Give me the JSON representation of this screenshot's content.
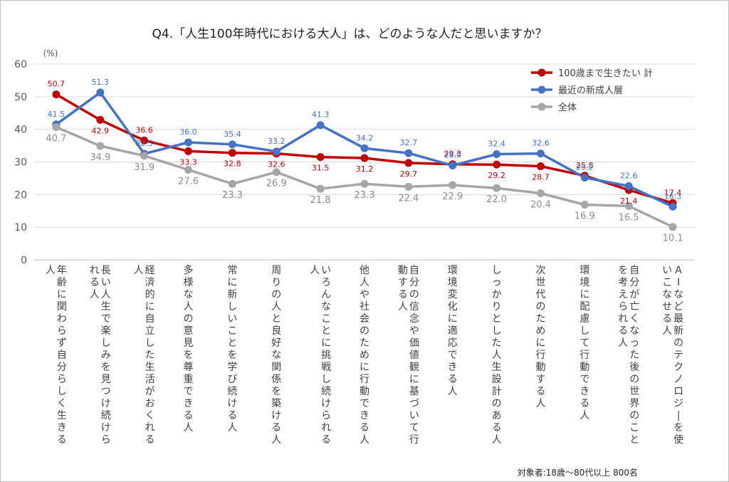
{
  "chart_data": {
    "type": "line",
    "title": "Q4.「人生100年時代における大人」は、どのような人だと思いますか？",
    "y_unit_label": "(%)",
    "ylim": [
      0,
      60
    ],
    "yticks": [
      0,
      10,
      20,
      30,
      40,
      50,
      60
    ],
    "grid": true,
    "legend_position": "top-right",
    "categories": [
      "年齢に関わらず自分らしく生きる人",
      "長い人生で楽しみを見つけ続けられる人",
      "経済的に自立した生活がおくれる人",
      "多様な人の意見を尊重できる人",
      "常に新しいことを学び続ける人",
      "周りの人と良好な関係を築ける人",
      "いろんなことに挑戦し続けられる人",
      "他人や社会のために行動できる人",
      "自分の信念や価値観に基づいて行動する人",
      "環境変化に適応できる人",
      "しっかりとした人生設計のある人",
      "次世代のために行動する人",
      "環境に配慮して行動できる人",
      "自分が亡くなった後の世界のことを考えられる人",
      "AIなど最新のテクノロジーを使いこなせる人"
    ],
    "series": [
      {
        "name": "100歳まで生きたい 計",
        "color": "#c00000",
        "values": [
          50.7,
          42.9,
          36.6,
          33.3,
          32.8,
          32.6,
          31.5,
          31.2,
          29.7,
          29.3,
          29.2,
          28.7,
          25.8,
          21.4,
          17.4
        ]
      },
      {
        "name": "最近の新成人層",
        "color": "#4472c4",
        "values": [
          41.5,
          51.3,
          32.5,
          36.0,
          35.4,
          33.2,
          41.3,
          34.2,
          32.7,
          28.9,
          32.4,
          32.6,
          25.2,
          22.6,
          16.3
        ]
      },
      {
        "name": "全体",
        "color": "#a6a6a6",
        "values": [
          40.7,
          34.9,
          31.9,
          27.6,
          23.3,
          26.9,
          21.8,
          23.3,
          22.4,
          22.9,
          22.0,
          20.4,
          16.9,
          16.5,
          10.1
        ]
      }
    ],
    "footnote": "対象者:18歳〜80代以上 800名"
  }
}
